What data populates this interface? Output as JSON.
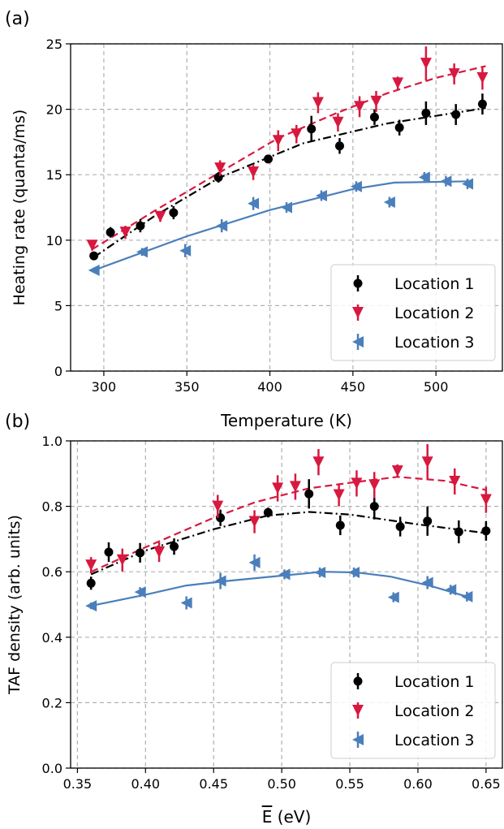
{
  "panels": [
    {
      "label": "(a)",
      "chart_data": {
        "type": "scatter",
        "xlabel": "Temperature (K)",
        "ylabel": "Heating rate (quanta/ms)",
        "xlim": [
          280,
          540
        ],
        "ylim": [
          0,
          25
        ],
        "xticks": [
          300,
          350,
          400,
          450,
          500
        ],
        "yticks": [
          0,
          5,
          10,
          15,
          20,
          25
        ],
        "grid": true,
        "legend_position": "lower-right",
        "series": [
          {
            "name": "Location 1",
            "marker": "circle",
            "color": "#000000",
            "fit_style": "dashdot",
            "points": [
              {
                "x": 294,
                "y": 8.8,
                "err": 0.3
              },
              {
                "x": 304,
                "y": 10.6,
                "err": 0.4
              },
              {
                "x": 322,
                "y": 11.1,
                "err": 0.5
              },
              {
                "x": 342,
                "y": 12.1,
                "err": 0.5
              },
              {
                "x": 369,
                "y": 14.8,
                "err": 0.4
              },
              {
                "x": 399,
                "y": 16.2,
                "err": 0.3
              },
              {
                "x": 425,
                "y": 18.5,
                "err": 1.0
              },
              {
                "x": 442,
                "y": 17.2,
                "err": 0.6
              },
              {
                "x": 463,
                "y": 19.4,
                "err": 0.6
              },
              {
                "x": 478,
                "y": 18.6,
                "err": 0.6
              },
              {
                "x": 494,
                "y": 19.7,
                "err": 0.9
              },
              {
                "x": 512,
                "y": 19.6,
                "err": 0.8
              },
              {
                "x": 528,
                "y": 20.4,
                "err": 0.8
              }
            ],
            "fit": [
              {
                "x": 294,
                "y": 8.7
              },
              {
                "x": 330,
                "y": 11.8
              },
              {
                "x": 370,
                "y": 14.8
              },
              {
                "x": 420,
                "y": 17.4
              },
              {
                "x": 470,
                "y": 18.9
              },
              {
                "x": 530,
                "y": 20.1
              }
            ]
          },
          {
            "name": "Location 2",
            "marker": "triangle_down",
            "color": "#d7193f",
            "fit_style": "dashed",
            "points": [
              {
                "x": 293,
                "y": 9.6,
                "err": 0.4
              },
              {
                "x": 313,
                "y": 10.6,
                "err": 0.5
              },
              {
                "x": 334,
                "y": 11.8,
                "err": 0.4
              },
              {
                "x": 370,
                "y": 15.5,
                "err": 0.6
              },
              {
                "x": 390,
                "y": 15.2,
                "err": 0.6
              },
              {
                "x": 405,
                "y": 17.6,
                "err": 0.8
              },
              {
                "x": 416,
                "y": 18.1,
                "err": 0.7
              },
              {
                "x": 429,
                "y": 20.5,
                "err": 0.8
              },
              {
                "x": 441,
                "y": 19.0,
                "err": 0.7
              },
              {
                "x": 454,
                "y": 20.2,
                "err": 0.8
              },
              {
                "x": 464,
                "y": 20.6,
                "err": 0.8
              },
              {
                "x": 477,
                "y": 22.0,
                "err": 0.5
              },
              {
                "x": 494,
                "y": 23.5,
                "err": 1.3
              },
              {
                "x": 511,
                "y": 22.7,
                "err": 0.8
              },
              {
                "x": 528,
                "y": 22.4,
                "err": 0.9
              }
            ],
            "fit": [
              {
                "x": 293,
                "y": 9.3
              },
              {
                "x": 330,
                "y": 12.2
              },
              {
                "x": 370,
                "y": 15.2
              },
              {
                "x": 405,
                "y": 17.8
              },
              {
                "x": 440,
                "y": 19.7
              },
              {
                "x": 470,
                "y": 21.2
              },
              {
                "x": 500,
                "y": 22.4
              },
              {
                "x": 530,
                "y": 23.3
              }
            ]
          },
          {
            "name": "Location 3",
            "marker": "triangle_left",
            "color": "#4a7fbb",
            "fit_style": "solid",
            "points": [
              {
                "x": 294,
                "y": 7.7,
                "err": 0.2
              },
              {
                "x": 323,
                "y": 9.1,
                "err": 0.3
              },
              {
                "x": 349,
                "y": 9.2,
                "err": 0.5
              },
              {
                "x": 371,
                "y": 11.1,
                "err": 0.5
              },
              {
                "x": 390,
                "y": 12.8,
                "err": 0.5
              },
              {
                "x": 410,
                "y": 12.5,
                "err": 0.4
              },
              {
                "x": 431,
                "y": 13.4,
                "err": 0.4
              },
              {
                "x": 452,
                "y": 14.1,
                "err": 0.4
              },
              {
                "x": 472,
                "y": 12.9,
                "err": 0.4
              },
              {
                "x": 493,
                "y": 14.8,
                "err": 0.4
              },
              {
                "x": 506,
                "y": 14.5,
                "err": 0.4
              },
              {
                "x": 519,
                "y": 14.3,
                "err": 0.4
              }
            ],
            "fit": [
              {
                "x": 294,
                "y": 7.7
              },
              {
                "x": 350,
                "y": 10.3
              },
              {
                "x": 400,
                "y": 12.3
              },
              {
                "x": 450,
                "y": 13.9
              },
              {
                "x": 475,
                "y": 14.4
              },
              {
                "x": 520,
                "y": 14.5
              }
            ]
          }
        ]
      }
    },
    {
      "label": "(b)",
      "chart_data": {
        "type": "scatter",
        "xlabel": "E (eV)",
        "xlabel_overline": "E",
        "xlabel_rest": " (eV)",
        "ylabel": "TAF density (arb. units)",
        "xlim": [
          0.345,
          0.662
        ],
        "ylim": [
          0,
          1.0
        ],
        "xticks": [
          0.35,
          0.4,
          0.45,
          0.5,
          0.55,
          0.6,
          0.65
        ],
        "yticks": [
          0.0,
          0.2,
          0.4,
          0.6,
          0.8,
          1.0
        ],
        "tick_decimals_x": 2,
        "tick_decimals_y": 1,
        "grid": true,
        "legend_position": "lower-right",
        "series": [
          {
            "name": "Location 1",
            "marker": "circle",
            "color": "#000000",
            "fit_style": "dashdot",
            "points": [
              {
                "x": 0.36,
                "y": 0.565,
                "err": 0.02
              },
              {
                "x": 0.373,
                "y": 0.66,
                "err": 0.03
              },
              {
                "x": 0.396,
                "y": 0.658,
                "err": 0.03
              },
              {
                "x": 0.421,
                "y": 0.677,
                "err": 0.025
              },
              {
                "x": 0.455,
                "y": 0.765,
                "err": 0.025
              },
              {
                "x": 0.49,
                "y": 0.781,
                "err": 0.015
              },
              {
                "x": 0.52,
                "y": 0.838,
                "err": 0.045
              },
              {
                "x": 0.543,
                "y": 0.742,
                "err": 0.03
              },
              {
                "x": 0.568,
                "y": 0.8,
                "err": 0.04
              },
              {
                "x": 0.587,
                "y": 0.738,
                "err": 0.03
              },
              {
                "x": 0.607,
                "y": 0.755,
                "err": 0.045
              },
              {
                "x": 0.63,
                "y": 0.722,
                "err": 0.035
              },
              {
                "x": 0.65,
                "y": 0.725,
                "err": 0.03
              }
            ],
            "fit": [
              {
                "x": 0.36,
                "y": 0.592
              },
              {
                "x": 0.4,
                "y": 0.665
              },
              {
                "x": 0.45,
                "y": 0.73
              },
              {
                "x": 0.49,
                "y": 0.772
              },
              {
                "x": 0.52,
                "y": 0.783
              },
              {
                "x": 0.55,
                "y": 0.775
              },
              {
                "x": 0.6,
                "y": 0.745
              },
              {
                "x": 0.65,
                "y": 0.718
              }
            ]
          },
          {
            "name": "Location 2",
            "marker": "triangle_down",
            "color": "#d7193f",
            "fit_style": "dashed",
            "points": [
              {
                "x": 0.36,
                "y": 0.62,
                "err": 0.025
              },
              {
                "x": 0.383,
                "y": 0.636,
                "err": 0.035
              },
              {
                "x": 0.41,
                "y": 0.66,
                "err": 0.03
              },
              {
                "x": 0.453,
                "y": 0.8,
                "err": 0.035
              },
              {
                "x": 0.48,
                "y": 0.753,
                "err": 0.035
              },
              {
                "x": 0.497,
                "y": 0.855,
                "err": 0.04
              },
              {
                "x": 0.51,
                "y": 0.86,
                "err": 0.04
              },
              {
                "x": 0.527,
                "y": 0.935,
                "err": 0.04
              },
              {
                "x": 0.542,
                "y": 0.835,
                "err": 0.035
              },
              {
                "x": 0.555,
                "y": 0.87,
                "err": 0.04
              },
              {
                "x": 0.568,
                "y": 0.865,
                "err": 0.04
              },
              {
                "x": 0.585,
                "y": 0.908,
                "err": 0.02
              },
              {
                "x": 0.607,
                "y": 0.935,
                "err": 0.055
              },
              {
                "x": 0.627,
                "y": 0.876,
                "err": 0.04
              },
              {
                "x": 0.65,
                "y": 0.82,
                "err": 0.04
              }
            ],
            "fit": [
              {
                "x": 0.36,
                "y": 0.6
              },
              {
                "x": 0.4,
                "y": 0.675
              },
              {
                "x": 0.45,
                "y": 0.765
              },
              {
                "x": 0.48,
                "y": 0.812
              },
              {
                "x": 0.52,
                "y": 0.855
              },
              {
                "x": 0.55,
                "y": 0.872
              },
              {
                "x": 0.585,
                "y": 0.89
              },
              {
                "x": 0.62,
                "y": 0.878
              },
              {
                "x": 0.65,
                "y": 0.85
              }
            ]
          },
          {
            "name": "Location 3",
            "marker": "triangle_left",
            "color": "#4a7fbb",
            "fit_style": "solid",
            "points": [
              {
                "x": 0.36,
                "y": 0.496,
                "err": 0.01
              },
              {
                "x": 0.396,
                "y": 0.538,
                "err": 0.015
              },
              {
                "x": 0.43,
                "y": 0.505,
                "err": 0.02
              },
              {
                "x": 0.455,
                "y": 0.572,
                "err": 0.025
              },
              {
                "x": 0.48,
                "y": 0.628,
                "err": 0.025
              },
              {
                "x": 0.502,
                "y": 0.592,
                "err": 0.015
              },
              {
                "x": 0.528,
                "y": 0.598,
                "err": 0.015
              },
              {
                "x": 0.553,
                "y": 0.598,
                "err": 0.015
              },
              {
                "x": 0.582,
                "y": 0.522,
                "err": 0.015
              },
              {
                "x": 0.607,
                "y": 0.567,
                "err": 0.02
              },
              {
                "x": 0.624,
                "y": 0.545,
                "err": 0.015
              },
              {
                "x": 0.636,
                "y": 0.524,
                "err": 0.015
              }
            ],
            "fit": [
              {
                "x": 0.36,
                "y": 0.496
              },
              {
                "x": 0.4,
                "y": 0.53
              },
              {
                "x": 0.43,
                "y": 0.558
              },
              {
                "x": 0.46,
                "y": 0.572
              },
              {
                "x": 0.5,
                "y": 0.588
              },
              {
                "x": 0.53,
                "y": 0.6
              },
              {
                "x": 0.555,
                "y": 0.598
              },
              {
                "x": 0.58,
                "y": 0.585
              },
              {
                "x": 0.61,
                "y": 0.556
              },
              {
                "x": 0.636,
                "y": 0.524
              }
            ]
          }
        ]
      }
    }
  ]
}
